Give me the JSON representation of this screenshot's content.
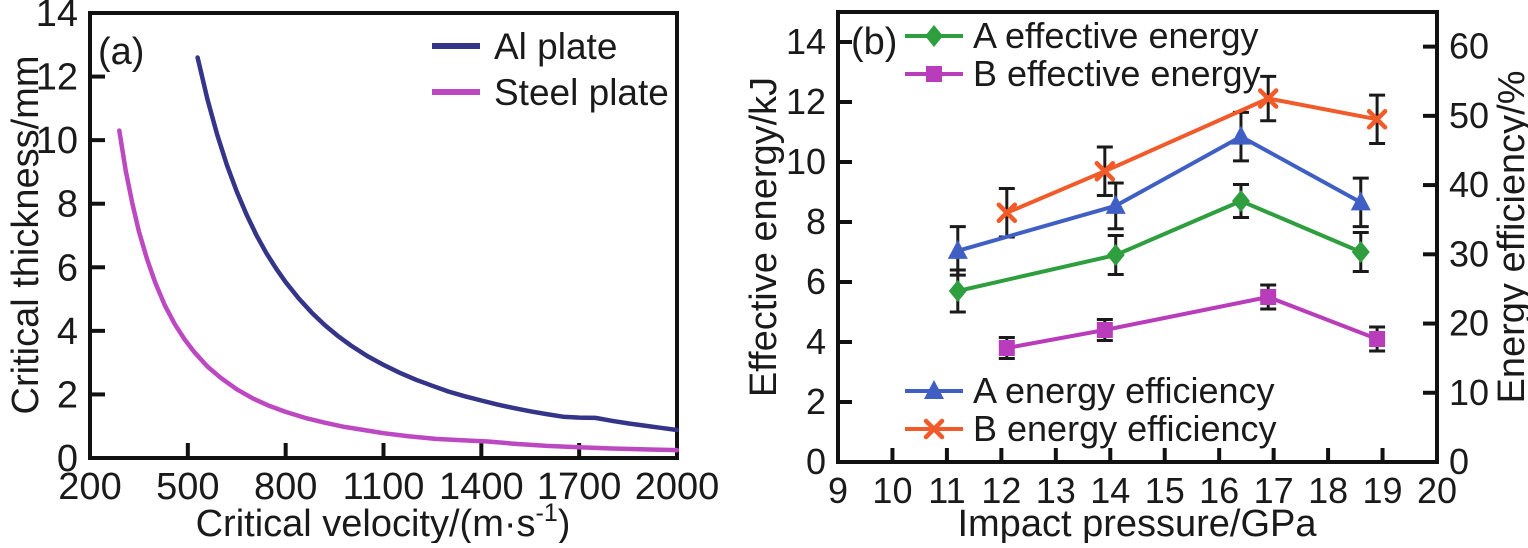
{
  "figure_title": "",
  "colors": {
    "frame": "#111111",
    "text": "#1a1a1a",
    "errorbar": "#1a1a1a",
    "al_plate": "#343489",
    "steel_plate": "#bd49c2",
    "a_effective_energy": "#2f9e3f",
    "b_effective_energy": "#b93cba",
    "a_energy_efficiency": "#3f5fc4",
    "b_energy_efficiency": "#f15a29"
  },
  "chart_data": [
    {
      "id": "a",
      "type": "line",
      "panel_label": "(a)",
      "xlabel": {
        "pre": "Critical velocity/(m·s",
        "sup": "-1",
        "post": ")"
      },
      "ylabel": "Critical thickness/mm",
      "xlim": [
        200,
        2000
      ],
      "xticks": [
        200,
        500,
        800,
        1100,
        1400,
        1700,
        2000
      ],
      "ylim": [
        0,
        14
      ],
      "yticks": [
        0,
        2,
        4,
        6,
        8,
        10,
        12,
        14
      ],
      "grid": false,
      "legend_position": "top-right-inside",
      "series": [
        {
          "name": "Al plate",
          "color_key": "al_plate",
          "x": [
            530,
            560,
            590,
            620,
            650,
            680,
            710,
            740,
            770,
            800,
            840,
            880,
            920,
            960,
            1000,
            1050,
            1100,
            1150,
            1200,
            1250,
            1300,
            1350,
            1400,
            1450,
            1500,
            1550,
            1600,
            1650,
            1700,
            1750,
            1800,
            1850,
            1900,
            1950,
            2000
          ],
          "y": [
            12.6,
            11.29,
            10.17,
            9.21,
            8.38,
            7.66,
            7.02,
            6.46,
            5.97,
            5.53,
            5.02,
            4.57,
            4.18,
            3.84,
            3.54,
            3.21,
            2.93,
            2.68,
            2.46,
            2.27,
            2.09,
            1.94,
            1.81,
            1.68,
            1.57,
            1.47,
            1.38,
            1.3,
            1.27,
            1.26,
            1.17,
            1.09,
            1.02,
            0.95,
            0.88
          ]
        },
        {
          "name": "Steel plate",
          "color_key": "steel_plate",
          "x": [
            290,
            310,
            330,
            350,
            375,
            400,
            430,
            460,
            490,
            520,
            560,
            600,
            650,
            700,
            750,
            800,
            860,
            920,
            980,
            1040,
            1100,
            1180,
            1260,
            1340,
            1420,
            1500,
            1600,
            1700,
            1800,
            1900,
            2000
          ],
          "y": [
            10.3,
            9.01,
            8.0,
            7.13,
            6.25,
            5.52,
            4.79,
            4.21,
            3.73,
            3.33,
            2.88,
            2.53,
            2.16,
            1.87,
            1.64,
            1.45,
            1.26,
            1.11,
            0.98,
            0.88,
            0.78,
            0.68,
            0.6,
            0.56,
            0.52,
            0.45,
            0.38,
            0.34,
            0.3,
            0.27,
            0.25
          ]
        }
      ]
    },
    {
      "id": "b",
      "type": "line-scatter-errorbar",
      "panel_label": "(b)",
      "xlabel": {
        "pre": "Impact pressure/GPa",
        "sup": "",
        "post": ""
      },
      "ylabel_left": "Effective energy/kJ",
      "ylabel_right": "Energy efficiency/%",
      "xlim": [
        9,
        20
      ],
      "xticks": [
        9,
        10,
        11,
        12,
        13,
        14,
        15,
        16,
        17,
        18,
        19,
        20
      ],
      "ylim_left": [
        0,
        15
      ],
      "yticks_left": [
        0,
        2,
        4,
        6,
        8,
        10,
        12,
        14
      ],
      "ylim_right": [
        0,
        65
      ],
      "yticks_right": [
        0,
        10,
        20,
        30,
        40,
        50,
        60
      ],
      "grid": false,
      "series": [
        {
          "name": "A effective energy",
          "axis": "left",
          "marker": "diamond",
          "color_key": "a_effective_energy",
          "legend": "top",
          "x": [
            11.2,
            14.1,
            16.4,
            18.6
          ],
          "y": [
            5.7,
            6.9,
            8.7,
            7.0
          ],
          "yerr": [
            0.7,
            0.65,
            0.55,
            0.65
          ]
        },
        {
          "name": "B effective energy",
          "axis": "left",
          "marker": "square",
          "color_key": "b_effective_energy",
          "legend": "top",
          "x": [
            12.1,
            13.9,
            16.9,
            18.9
          ],
          "y": [
            3.8,
            4.4,
            5.5,
            4.1
          ],
          "yerr": [
            0.35,
            0.35,
            0.4,
            0.4
          ]
        },
        {
          "name": "A energy efficiency",
          "axis": "right",
          "marker": "triangle",
          "color_key": "a_energy_efficiency",
          "legend": "bottom",
          "x": [
            11.2,
            14.1,
            16.4,
            18.6
          ],
          "y": [
            30.5,
            37.0,
            47.0,
            37.5
          ],
          "yerr": [
            3.5,
            3.3,
            3.5,
            3.5
          ]
        },
        {
          "name": "B energy efficiency",
          "axis": "right",
          "marker": "x",
          "color_key": "b_energy_efficiency",
          "legend": "bottom",
          "x": [
            12.1,
            13.9,
            16.9,
            18.9
          ],
          "y": [
            36.0,
            42.0,
            52.5,
            49.5
          ],
          "yerr": [
            3.5,
            3.5,
            3.2,
            3.5
          ]
        }
      ]
    }
  ]
}
